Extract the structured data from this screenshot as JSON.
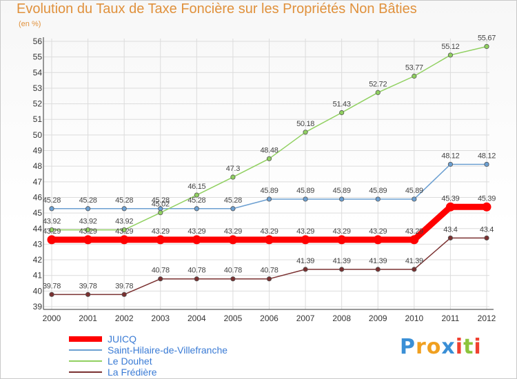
{
  "chart_data": {
    "type": "line",
    "title": "Evolution du Taux de Taxe Foncière sur les Propriétés Non Bâties",
    "unit_label": "(en %)",
    "xlabel": "",
    "ylabel": "",
    "ylim": [
      39,
      56
    ],
    "yticks": [
      "39",
      "40",
      "41",
      "42",
      "43",
      "44",
      "45",
      "46",
      "47",
      "48",
      "49",
      "50",
      "51",
      "52",
      "53",
      "54",
      "55",
      "56"
    ],
    "categories": [
      "2000",
      "2001",
      "2002",
      "2003",
      "2004",
      "2005",
      "2006",
      "2007",
      "2008",
      "2009",
      "2010",
      "2011",
      "2012"
    ],
    "series": [
      {
        "name": "JUICQ",
        "color": "#ff0000",
        "values": [
          43.29,
          43.29,
          43.29,
          43.29,
          43.29,
          43.29,
          43.29,
          43.29,
          43.29,
          43.29,
          43.29,
          45.39,
          45.39
        ],
        "labels": [
          "43.29",
          "43.29",
          "43.29",
          "43.29",
          "43.29",
          "43.29",
          "43.29",
          "43.29",
          "43.29",
          "43.29",
          "43.29",
          "45.39",
          "45.39"
        ]
      },
      {
        "name": "Saint-Hilaire-de-Villefranche",
        "color": "#6b9fd1",
        "values": [
          45.28,
          45.28,
          45.28,
          45.28,
          45.28,
          45.28,
          45.89,
          45.89,
          45.89,
          45.89,
          45.89,
          48.12,
          48.12
        ],
        "labels": [
          "45.28",
          "45.28",
          "45.28",
          "45.28",
          "45.28",
          "45.28",
          "45.89",
          "45.89",
          "45.89",
          "45.89",
          "45.89",
          "48.12",
          "48.12"
        ]
      },
      {
        "name": "Le Douhet",
        "color": "#90d060",
        "values": [
          43.92,
          43.92,
          43.92,
          45.02,
          46.15,
          47.3,
          48.48,
          50.18,
          51.43,
          52.72,
          53.77,
          55.12,
          55.67
        ],
        "labels": [
          "43.92",
          "43.92",
          "43.92",
          "45.02",
          "46.15",
          "47.3",
          "48.48",
          "50.18",
          "51.43",
          "52.72",
          "53.77",
          "55.12",
          "55.67"
        ]
      },
      {
        "name": "La Frédière",
        "color": "#7a3030",
        "values": [
          39.78,
          39.78,
          39.78,
          40.78,
          40.78,
          40.78,
          40.78,
          41.39,
          41.39,
          41.39,
          41.39,
          43.4,
          43.4
        ],
        "labels": [
          "39.78",
          "39.78",
          "39.78",
          "40.78",
          "40.78",
          "40.78",
          "40.78",
          "41.39",
          "41.39",
          "41.39",
          "41.39",
          "43.4",
          "43.4"
        ]
      }
    ]
  },
  "logo": {
    "letters": [
      "P",
      "r",
      "o",
      "x",
      "i",
      "t",
      "i"
    ],
    "colors": [
      "#3a8fd6",
      "#f0a020",
      "#f0a020",
      "#3a8fd6",
      "#f04030",
      "#8cc43c",
      "#f04030"
    ]
  }
}
